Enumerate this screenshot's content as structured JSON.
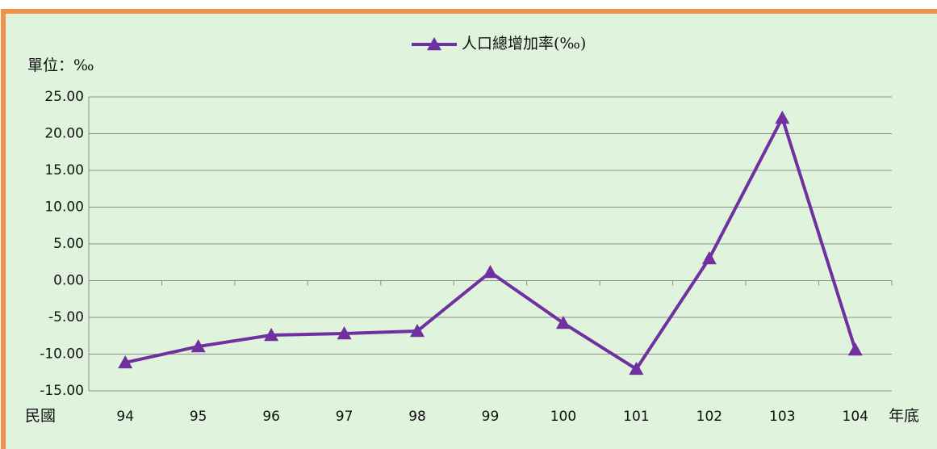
{
  "chart_data": {
    "type": "line",
    "unit_label": "單位：‰",
    "x_prefix": "民國",
    "x_suffix": "年底",
    "categories": [
      "94",
      "95",
      "96",
      "97",
      "98",
      "99",
      "100",
      "101",
      "102",
      "103",
      "104"
    ],
    "series": [
      {
        "name": "人口總增加率(‰)",
        "color": "#7030a0",
        "values": [
          -11.15,
          -8.96,
          -7.42,
          -7.2,
          -6.87,
          1.15,
          -5.77,
          -12.03,
          3.02,
          22.14,
          -9.4
        ]
      }
    ],
    "ylim": [
      -15,
      25
    ],
    "yticks": [
      {
        "value": -15,
        "label": "-15.00"
      },
      {
        "value": -10,
        "label": "-10.00"
      },
      {
        "value": -5,
        "label": "-5.00"
      },
      {
        "value": 0,
        "label": "0.00"
      },
      {
        "value": 5,
        "label": "5.00"
      },
      {
        "value": 10,
        "label": "10.00"
      },
      {
        "value": 15,
        "label": "15.00"
      },
      {
        "value": 20,
        "label": "20.00"
      },
      {
        "value": 25,
        "label": "25.00"
      }
    ],
    "grid": true,
    "legend": "top"
  }
}
